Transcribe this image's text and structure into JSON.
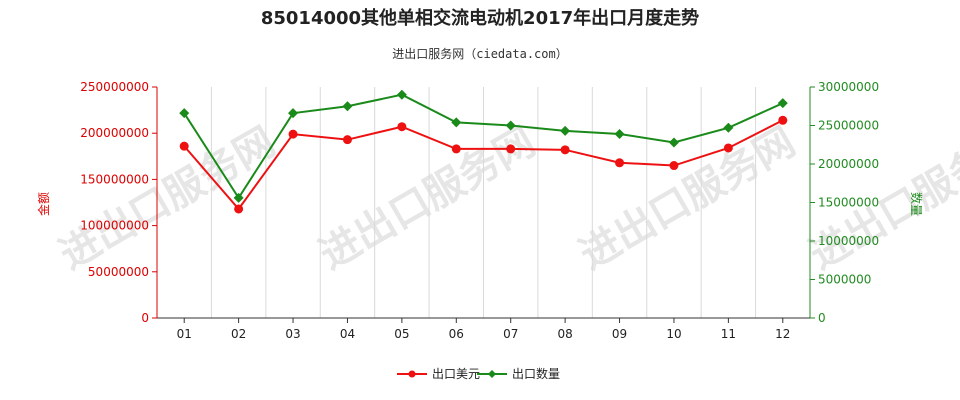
{
  "chart_data": {
    "type": "line",
    "title": "85014000其他单相交流电动机2017年出口月度走势",
    "subtitle": "进出口服务网（ciedata.com）",
    "watermark": "进出口服务网",
    "categories": [
      "01",
      "02",
      "03",
      "04",
      "05",
      "06",
      "07",
      "08",
      "09",
      "10",
      "11",
      "12"
    ],
    "y_left": {
      "label": "金额",
      "ylim": [
        0,
        250000000
      ],
      "ticks": [
        "0",
        "50000000",
        "100000000",
        "150000000",
        "200000000",
        "250000000"
      ],
      "tick_values": [
        0,
        50000000,
        100000000,
        150000000,
        200000000,
        250000000
      ],
      "color": "#dd0000"
    },
    "y_right": {
      "label": "数量",
      "ylim": [
        0,
        30000000
      ],
      "ticks": [
        "0",
        "5000000",
        "10000000",
        "15000000",
        "20000000",
        "25000000",
        "30000000"
      ],
      "tick_values": [
        0,
        5000000,
        10000000,
        15000000,
        20000000,
        25000000,
        30000000
      ],
      "color": "#228b22"
    },
    "series": [
      {
        "name": "出口美元",
        "axis": "left",
        "color": "#ee1111",
        "values": [
          186000000,
          118000000,
          199000000,
          193000000,
          207000000,
          183000000,
          183000000,
          182000000,
          168000000,
          165000000,
          184000000,
          214000000
        ]
      },
      {
        "name": "出口数量",
        "axis": "right",
        "color": "#1a8a1a",
        "values": [
          26600000,
          15600000,
          26600000,
          27500000,
          29000000,
          25400000,
          25000000,
          24300000,
          23900000,
          22800000,
          24700000,
          27900000
        ]
      }
    ],
    "legend_position": "bottom-center",
    "grid": "vertical"
  }
}
